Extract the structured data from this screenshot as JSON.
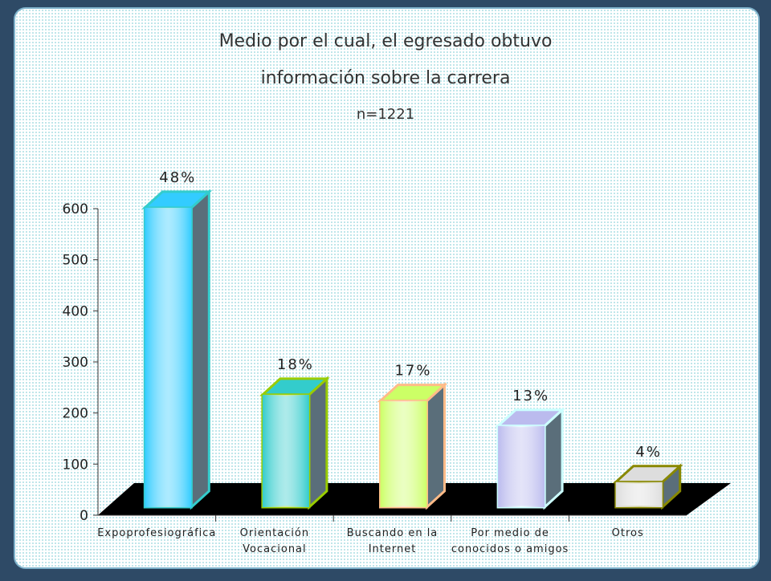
{
  "chart_data": {
    "type": "bar3d",
    "title": [
      "Medio por el cual, el egresado obtuvo",
      "información sobre la carrera"
    ],
    "subtitle": "n=1221",
    "categories": [
      "Expoprofesiográfica",
      "Orientación\nVocacional",
      "Buscando en la\nInternet",
      "Por medio de\nconocidos o amigos",
      "Otros"
    ],
    "values": [
      586,
      220,
      208,
      159,
      49
    ],
    "value_labels": [
      "48%",
      "18%",
      "17%",
      "13%",
      "4%"
    ],
    "colors": [
      "#33ccff",
      "#33cccc",
      "#ccff66",
      "#bbbbee",
      "#dddddd"
    ],
    "edge_colors": [
      "#33cccc",
      "#99cc00",
      "#ffbb88",
      "#ccffff",
      "#888800"
    ],
    "ylim": [
      0,
      600
    ],
    "yticks": [
      0,
      100,
      200,
      300,
      400,
      500,
      600
    ]
  }
}
